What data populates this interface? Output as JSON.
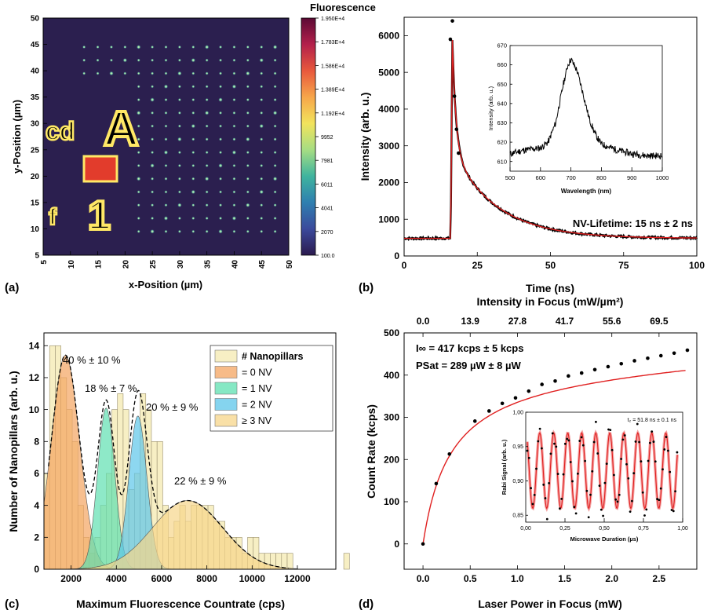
{
  "panels": {
    "a": {
      "label": "(a)",
      "chart_data": {
        "type": "heatmap",
        "xlabel": "x-Position (µm)",
        "ylabel": "y-Position (µm)",
        "xlim": [
          5,
          50
        ],
        "ylim": [
          5,
          50
        ],
        "xticks": [
          "5",
          "10",
          "15",
          "20",
          "25",
          "30",
          "35",
          "40",
          "45",
          "50"
        ],
        "yticks": [
          "5",
          "10",
          "15",
          "20",
          "25",
          "30",
          "35",
          "40",
          "45",
          "50"
        ],
        "colorbar": {
          "title": "Fluorescence",
          "ticks": [
            "1.950E+4",
            "1.783E+4",
            "1.586E+4",
            "1.389E+4",
            "1.192E+4",
            "9952",
            "7981",
            "6011",
            "4041",
            "2070",
            "100.0"
          ],
          "range": [
            100.0,
            19500
          ],
          "colors": [
            "#2b1a4e",
            "#3b4a9c",
            "#2f7fb0",
            "#3fb49e",
            "#a6dd83",
            "#f2e35c",
            "#f7a64a",
            "#e8583c",
            "#b3204b",
            "#5c0a35"
          ]
        },
        "grid": {
          "x_start": 12.5,
          "y_start": 9.5,
          "pitch": 2.5,
          "nx": 15,
          "ny": 15
        },
        "annotations": [
          "A",
          "cd",
          "1",
          "f"
        ]
      }
    },
    "b": {
      "label": "(b)",
      "chart_data": {
        "type": "line",
        "xlabel": "Time (ns)",
        "ylabel": "Intensity (arb. u.)",
        "xlim": [
          0,
          100
        ],
        "ylim": [
          0,
          6500
        ],
        "xticks": [
          "0",
          "25",
          "50",
          "75",
          "100"
        ],
        "yticks": [
          "0",
          "1000",
          "2000",
          "3000",
          "4000",
          "5000",
          "6000"
        ],
        "annotation": "NV-Lifetime: 15 ns ± 2 ns",
        "fit": {
          "baseline": 480,
          "peak_time": 16.5,
          "amplitude_fast": 3000,
          "tau_fast": 1.2,
          "amplitude_slow": 2400,
          "tau_slow": 15
        },
        "peak_points": [
          [
            15.8,
            5900
          ],
          [
            16.5,
            6400
          ],
          [
            17.2,
            4350
          ],
          [
            17.9,
            3450
          ],
          [
            18.6,
            2800
          ]
        ],
        "inset": {
          "type": "line",
          "xlabel": "Wavelength (nm)",
          "ylabel": "Intensity (arb. u.)",
          "xlim": [
            500,
            1000
          ],
          "ylim": [
            605,
            670
          ],
          "xticks": [
            "500",
            "600",
            "700",
            "800",
            "900",
            "1000"
          ],
          "yticks": [
            "610",
            "620",
            "630",
            "640",
            "650",
            "660",
            "670"
          ],
          "spectrum": [
            [
              500,
              614
            ],
            [
              550,
              616
            ],
            [
              600,
              617
            ],
            [
              625,
              620
            ],
            [
              650,
              630
            ],
            [
              675,
              650
            ],
            [
              690,
              660
            ],
            [
              700,
              663
            ],
            [
              720,
              657
            ],
            [
              740,
              645
            ],
            [
              760,
              632
            ],
            [
              780,
              624
            ],
            [
              800,
              619
            ],
            [
              850,
              616
            ],
            [
              900,
              614
            ],
            [
              950,
              613
            ],
            [
              1000,
              613
            ]
          ]
        }
      }
    },
    "c": {
      "label": "(c)",
      "chart_data": {
        "type": "bar",
        "xlabel": "Maximum Fluorescence Countrate (cps)",
        "ylabel": "Number of Nanopillars (arb. u.)",
        "xlim": [
          800,
          13700
        ],
        "ylim": [
          0,
          14.8
        ],
        "xticks": [
          "2000",
          "4000",
          "6000",
          "8000",
          "10000",
          "12000"
        ],
        "yticks": [
          "0",
          "2",
          "4",
          "6",
          "8",
          "10",
          "12",
          "14"
        ],
        "bin_start": 800,
        "bin_width": 250,
        "counts": [
          6,
          14,
          14,
          12,
          10,
          8,
          4,
          2,
          1,
          2,
          4,
          6,
          10,
          11,
          10,
          5,
          6,
          11,
          10,
          8,
          8,
          4,
          2,
          3,
          4,
          3,
          4,
          4,
          4,
          4,
          3,
          3,
          2,
          2,
          2,
          1,
          2,
          2,
          1,
          1,
          1,
          1,
          1,
          1,
          0,
          0,
          0,
          0,
          0,
          0,
          0,
          0,
          0,
          1
        ],
        "legend": [
          "# Nanopillars",
          "= 0 NV",
          "= 1 NV",
          "= 2 NV",
          "≥ 3 NV"
        ],
        "legend_position": "top-right",
        "series": [
          {
            "name": "= 0 NV",
            "mean": 1750,
            "sigma": 620,
            "amplitude": 13.4,
            "color": "#f4a460",
            "label": "40 % ± 10 %"
          },
          {
            "name": "= 1 NV",
            "mean": 3550,
            "sigma": 380,
            "amplitude": 10.1,
            "color": "#5ee0b0",
            "label": "18 % ± 7 %"
          },
          {
            "name": "= 2 NV",
            "mean": 4950,
            "sigma": 400,
            "amplitude": 9.6,
            "color": "#5cc6ea",
            "label": "20 % ± 9 %"
          },
          {
            "name": "≥ 3 NV",
            "mean": 7150,
            "sigma": 1550,
            "amplitude": 4.3,
            "color": "#f7d68a",
            "label": "22 % ± 9 %"
          }
        ],
        "label_colors": [
          "#d2691e",
          "#1aa67a",
          "#1c85b8",
          "#d4a017"
        ]
      }
    },
    "d": {
      "label": "(d)",
      "chart_data": {
        "type": "scatter",
        "xlabel": "Laser Power in Focus (mW)",
        "ylabel": "Count Rate (kcps)",
        "top_xlabel": "Intensity in Focus (mW/µm²)",
        "xlim": [
          -0.2,
          2.9
        ],
        "ylim": [
          -60,
          500
        ],
        "xticks": [
          "0.0",
          "0.5",
          "1.0",
          "1.5",
          "2.0",
          "2.5"
        ],
        "top_xticks": [
          "0.0",
          "13.9",
          "27.8",
          "41.7",
          "55.6",
          "69.5"
        ],
        "yticks": [
          "0",
          "100",
          "200",
          "300",
          "400",
          "500"
        ],
        "annotations": [
          "I∞ = 417 kcps ± 5 kcps",
          "PSat = 289 µW ± 8 µW"
        ],
        "fit": {
          "I_inf": 417,
          "P_sat": 0.289,
          "linear": 12
        },
        "x": [
          0.0,
          0.14,
          0.28,
          0.55,
          0.7,
          0.84,
          0.98,
          1.12,
          1.26,
          1.4,
          1.54,
          1.68,
          1.82,
          1.96,
          2.1,
          2.24,
          2.38,
          2.52,
          2.66,
          2.8
        ],
        "y": [
          0,
          143,
          213,
          291,
          315,
          333,
          346,
          362,
          378,
          386,
          398,
          405,
          413,
          420,
          427,
          434,
          440,
          446,
          452,
          459
        ],
        "inset": {
          "type": "line",
          "xlabel": "Microwave Duration (µs)",
          "ylabel": "Rabi Signal (arb. u.)",
          "title": "t₂ = 51.8 ns ± 0.1 ns",
          "xlim": [
            0,
            1
          ],
          "ylim": [
            0.84,
            1.0
          ],
          "xticks": [
            "0,00",
            "0,25",
            "0,50",
            "0,75",
            "1,00"
          ],
          "yticks": [
            "0,85",
            "0,90",
            "0,95",
            "1,00"
          ],
          "freq_per_us": 11.2,
          "amplitude": 0.055,
          "offset": 0.915
        }
      }
    }
  }
}
